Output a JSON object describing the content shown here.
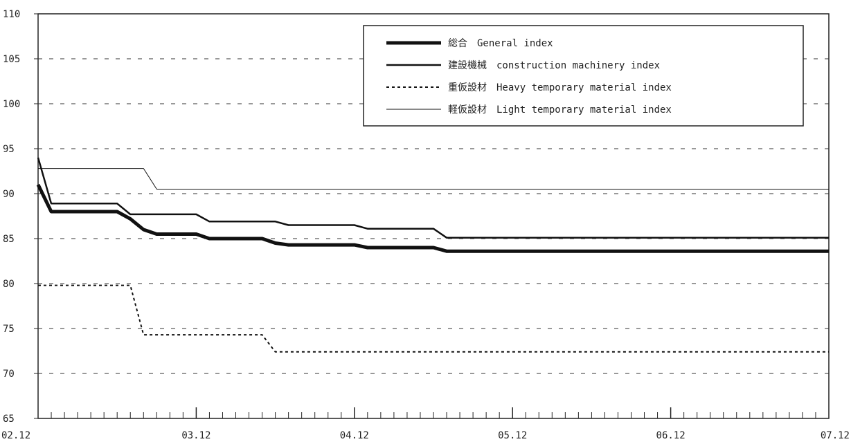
{
  "chart_data": {
    "type": "line",
    "ylim": [
      65,
      110
    ],
    "y_ticks": [
      "65",
      "70",
      "75",
      "80",
      "85",
      "90",
      "95",
      "100",
      "105",
      "110"
    ],
    "x_labels": [
      "02.12",
      "03.12",
      "04.12",
      "05.12",
      "06.12",
      "07.12"
    ],
    "x_range": [
      0,
      60
    ],
    "grid": "horizontal dashed",
    "legend_position": "top-right",
    "series": [
      {
        "name": "総合　General index",
        "style": "thick",
        "points": [
          [
            0,
            91.0
          ],
          [
            1,
            88.0
          ],
          [
            6,
            88.0
          ],
          [
            7,
            87.2
          ],
          [
            8,
            86.0
          ],
          [
            9,
            85.5
          ],
          [
            12,
            85.5
          ],
          [
            13,
            85.0
          ],
          [
            17,
            85.0
          ],
          [
            18,
            84.5
          ],
          [
            19,
            84.3
          ],
          [
            24,
            84.3
          ],
          [
            25,
            84.0
          ],
          [
            30,
            84.0
          ],
          [
            31,
            83.6
          ],
          [
            60,
            83.6
          ]
        ]
      },
      {
        "name": "建設機械　construction machinery index",
        "style": "medium",
        "points": [
          [
            0,
            94.0
          ],
          [
            1,
            88.9
          ],
          [
            6,
            88.9
          ],
          [
            7,
            87.7
          ],
          [
            12,
            87.7
          ],
          [
            13,
            86.9
          ],
          [
            18,
            86.9
          ],
          [
            19,
            86.5
          ],
          [
            24,
            86.5
          ],
          [
            25,
            86.1
          ],
          [
            30,
            86.1
          ],
          [
            31,
            85.1
          ],
          [
            60,
            85.1
          ]
        ]
      },
      {
        "name": "重仮設材　Heavy temporary material index",
        "style": "dashed",
        "points": [
          [
            0,
            79.8
          ],
          [
            7,
            79.8
          ],
          [
            8,
            74.3
          ],
          [
            17,
            74.3
          ],
          [
            18,
            72.4
          ],
          [
            60,
            72.4
          ]
        ]
      },
      {
        "name": "軽仮設材　Light temporary material index",
        "style": "thin",
        "points": [
          [
            0,
            92.8
          ],
          [
            8,
            92.8
          ],
          [
            9,
            90.5
          ],
          [
            60,
            90.5
          ]
        ]
      }
    ]
  }
}
